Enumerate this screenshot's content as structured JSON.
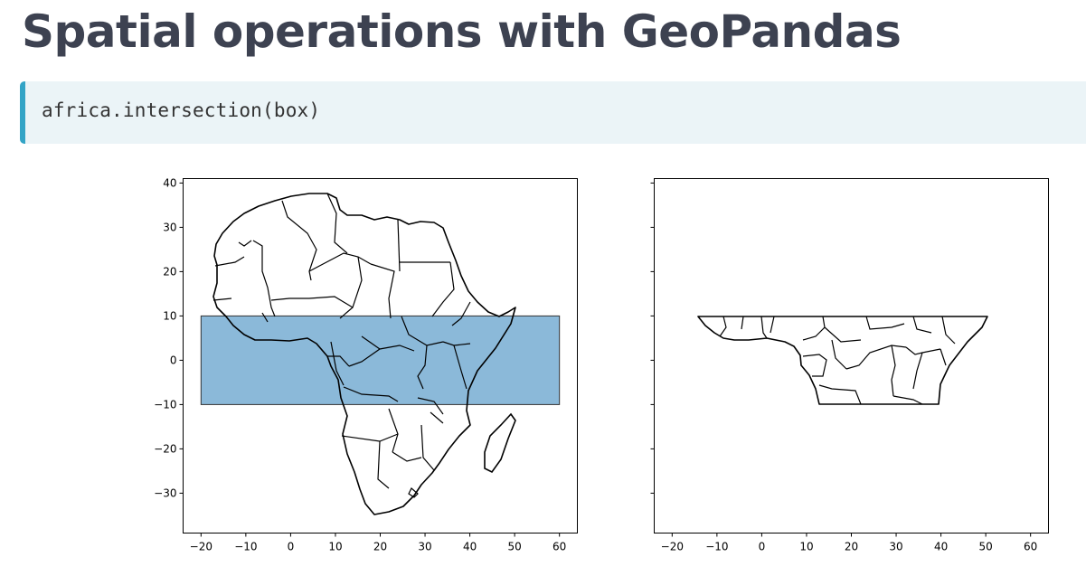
{
  "slide": {
    "title": "Spatial operations with GeoPandas",
    "code": "africa.intersection(box)"
  },
  "colors": {
    "title": "#3d4251",
    "code_bg": "#ebf4f7",
    "code_accent": "#33a4c6",
    "box_fill": "#8bb9d9"
  },
  "chart_data": [
    {
      "type": "map",
      "panel": "left",
      "xticks": [
        -20,
        -10,
        0,
        10,
        20,
        30,
        40,
        50,
        60
      ],
      "yticks": [
        40,
        30,
        20,
        10,
        0,
        -10,
        -20,
        -30
      ],
      "xlim": [
        -24,
        64
      ],
      "ylim": [
        -39,
        41
      ],
      "box": {
        "x": [
          -20,
          60
        ],
        "y": [
          -10,
          10
        ],
        "fill": "#8bb9d9"
      }
    },
    {
      "type": "map",
      "panel": "right",
      "xticks": [
        -20,
        -10,
        0,
        10,
        20,
        30,
        40,
        50,
        60
      ],
      "yticks": [],
      "xlim": [
        -24,
        64
      ],
      "ylim": [
        -39,
        41
      ]
    }
  ]
}
